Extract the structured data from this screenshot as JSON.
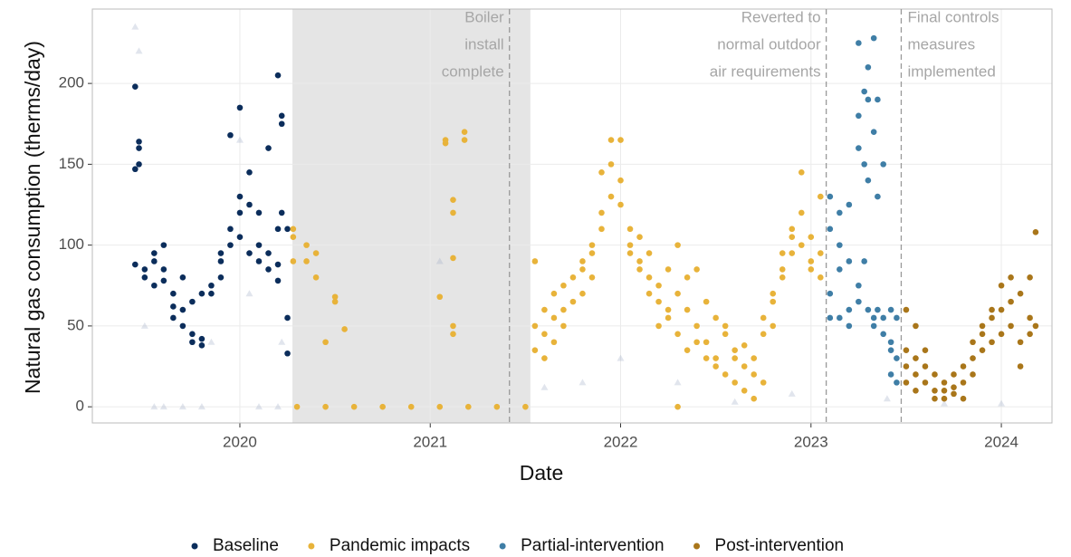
{
  "chart_data": {
    "type": "scatter",
    "xlabel": "Date",
    "ylabel": "Natural gas consumption (therms/day)",
    "xlim": [
      2019.225,
      2024.266
    ],
    "ylim": [
      -10,
      246
    ],
    "xticks": [
      2020,
      2021,
      2022,
      2023,
      2024
    ],
    "yticks": [
      0,
      50,
      100,
      150,
      200
    ],
    "grid": true,
    "legend": "bottom",
    "shaded_region": [
      2020.276,
      2021.526
    ],
    "annotations": [
      {
        "x": 2021.416,
        "align": "right",
        "lines": [
          "Boiler",
          "install",
          "complete"
        ]
      },
      {
        "x": 2023.08,
        "align": "right",
        "lines": [
          "Reverted to",
          "normal outdoor",
          "air requirements"
        ]
      },
      {
        "x": 2023.474,
        "align": "left",
        "lines": [
          "Final controls",
          "measures",
          "implemented"
        ]
      }
    ],
    "series": [
      {
        "color": "#9aa9c4",
        "marker": "triangle",
        "opacity": 0.3,
        "x": [
          2019.45,
          2019.47,
          2019.5,
          2019.55,
          2019.6,
          2019.7,
          2019.8,
          2019.85,
          2020.0,
          2020.05,
          2020.1,
          2020.2,
          2020.22,
          2021.05,
          2021.6,
          2021.8,
          2022.0,
          2022.3,
          2022.6,
          2022.9,
          2023.4,
          2023.7,
          2024.0
        ],
        "values": [
          235,
          220,
          50,
          0,
          0,
          0,
          0,
          40,
          165,
          70,
          0,
          0,
          40,
          90,
          12,
          15,
          30,
          15,
          3,
          8,
          5,
          2,
          2
        ]
      },
      {
        "name": "Baseline",
        "color": "#0b2d5b",
        "x": [
          2019.45,
          2019.45,
          2019.45,
          2019.47,
          2019.47,
          2019.47,
          2019.5,
          2019.5,
          2019.55,
          2019.55,
          2019.55,
          2019.6,
          2019.6,
          2019.6,
          2019.65,
          2019.65,
          2019.65,
          2019.7,
          2019.7,
          2019.7,
          2019.75,
          2019.75,
          2019.75,
          2019.8,
          2019.8,
          2019.8,
          2019.85,
          2019.85,
          2019.9,
          2019.9,
          2019.9,
          2019.95,
          2019.95,
          2019.95,
          2020.0,
          2020.0,
          2020.0,
          2020.0,
          2020.05,
          2020.05,
          2020.05,
          2020.1,
          2020.1,
          2020.1,
          2020.15,
          2020.15,
          2020.15,
          2020.2,
          2020.2,
          2020.2,
          2020.2,
          2020.22,
          2020.22,
          2020.22,
          2020.25,
          2020.25,
          2020.25
        ],
        "values": [
          198,
          147,
          88,
          164,
          160,
          150,
          85,
          80,
          90,
          75,
          95,
          100,
          85,
          78,
          62,
          55,
          70,
          60,
          50,
          80,
          45,
          40,
          65,
          42,
          38,
          70,
          75,
          70,
          90,
          95,
          80,
          168,
          110,
          100,
          185,
          130,
          120,
          105,
          145,
          125,
          95,
          100,
          90,
          120,
          160,
          85,
          95,
          205,
          110,
          88,
          78,
          180,
          175,
          120,
          55,
          33,
          110
        ]
      },
      {
        "name": "Pandemic impacts",
        "color": "#e8b33a",
        "x": [
          2020.28,
          2020.28,
          2020.28,
          2020.3,
          2020.45,
          2020.6,
          2020.75,
          2020.9,
          2021.05,
          2021.2,
          2021.35,
          2021.5,
          2020.35,
          2020.35,
          2020.4,
          2020.4,
          2020.45,
          2020.5,
          2020.5,
          2020.55,
          2021.05,
          2021.08,
          2021.08,
          2021.12,
          2021.12,
          2021.12,
          2021.12,
          2021.12,
          2021.18,
          2021.18,
          2021.55,
          2021.55,
          2021.55,
          2021.6,
          2021.6,
          2021.6,
          2021.65,
          2021.65,
          2021.65,
          2021.7,
          2021.7,
          2021.7,
          2021.75,
          2021.75,
          2021.8,
          2021.8,
          2021.8,
          2021.85,
          2021.85,
          2021.85,
          2021.9,
          2021.9,
          2021.9,
          2021.95,
          2021.95,
          2021.95,
          2022.0,
          2022.0,
          2022.0,
          2022.05,
          2022.05,
          2022.05,
          2022.1,
          2022.1,
          2022.1,
          2022.15,
          2022.15,
          2022.15,
          2022.2,
          2022.2,
          2022.2,
          2022.25,
          2022.25,
          2022.25,
          2022.3,
          2022.3,
          2022.3,
          2022.3,
          2022.35,
          2022.35,
          2022.35,
          2022.4,
          2022.4,
          2022.4,
          2022.45,
          2022.45,
          2022.45,
          2022.5,
          2022.5,
          2022.5,
          2022.55,
          2022.55,
          2022.55,
          2022.6,
          2022.6,
          2022.6,
          2022.65,
          2022.65,
          2022.65,
          2022.7,
          2022.7,
          2022.7,
          2022.75,
          2022.75,
          2022.75,
          2022.8,
          2022.8,
          2022.8,
          2022.85,
          2022.85,
          2022.85,
          2022.9,
          2022.9,
          2022.9,
          2022.95,
          2022.95,
          2022.95,
          2023.0,
          2023.0,
          2023.0,
          2023.05,
          2023.05,
          2023.05
        ],
        "values": [
          105,
          110,
          90,
          0,
          0,
          0,
          0,
          0,
          0,
          0,
          0,
          0,
          100,
          90,
          95,
          80,
          40,
          65,
          68,
          48,
          68,
          165,
          163,
          50,
          45,
          92,
          120,
          128,
          170,
          165,
          90,
          50,
          35,
          45,
          30,
          60,
          55,
          70,
          40,
          60,
          75,
          50,
          80,
          65,
          90,
          85,
          70,
          100,
          95,
          80,
          120,
          145,
          110,
          165,
          150,
          130,
          165,
          140,
          125,
          110,
          100,
          95,
          105,
          90,
          85,
          95,
          80,
          70,
          75,
          65,
          50,
          85,
          60,
          55,
          70,
          100,
          45,
          0,
          80,
          60,
          35,
          85,
          50,
          40,
          65,
          40,
          30,
          55,
          30,
          25,
          50,
          45,
          20,
          30,
          15,
          35,
          25,
          10,
          38,
          30,
          20,
          5,
          45,
          55,
          15,
          65,
          70,
          50,
          85,
          80,
          95,
          105,
          95,
          110,
          145,
          100,
          120,
          105,
          90,
          85,
          130,
          95,
          80
        ]
      },
      {
        "name": "Partial-intervention",
        "color": "#3f7ea6",
        "x": [
          2023.1,
          2023.1,
          2023.1,
          2023.1,
          2023.15,
          2023.15,
          2023.15,
          2023.15,
          2023.2,
          2023.2,
          2023.2,
          2023.2,
          2023.25,
          2023.25,
          2023.25,
          2023.25,
          2023.25,
          2023.28,
          2023.28,
          2023.28,
          2023.3,
          2023.3,
          2023.3,
          2023.3,
          2023.33,
          2023.33,
          2023.33,
          2023.33,
          2023.35,
          2023.35,
          2023.35,
          2023.38,
          2023.38,
          2023.38,
          2023.42,
          2023.42,
          2023.42,
          2023.42,
          2023.45,
          2023.45,
          2023.45
        ],
        "values": [
          110,
          70,
          55,
          130,
          120,
          100,
          85,
          55,
          125,
          90,
          60,
          50,
          225,
          180,
          160,
          75,
          65,
          195,
          150,
          90,
          210,
          190,
          140,
          60,
          228,
          170,
          55,
          50,
          190,
          130,
          60,
          150,
          55,
          45,
          60,
          35,
          40,
          20,
          55,
          30,
          15
        ]
      },
      {
        "name": "Post-intervention",
        "color": "#a9761a",
        "x": [
          2023.5,
          2023.5,
          2023.5,
          2023.5,
          2023.55,
          2023.55,
          2023.55,
          2023.55,
          2023.6,
          2023.6,
          2023.6,
          2023.65,
          2023.65,
          2023.65,
          2023.7,
          2023.7,
          2023.7,
          2023.75,
          2023.75,
          2023.75,
          2023.8,
          2023.8,
          2023.8,
          2023.85,
          2023.85,
          2023.85,
          2023.9,
          2023.9,
          2023.9,
          2023.95,
          2023.95,
          2023.95,
          2024.0,
          2024.0,
          2024.0,
          2024.05,
          2024.05,
          2024.05,
          2024.1,
          2024.1,
          2024.1,
          2024.15,
          2024.15,
          2024.15,
          2024.18,
          2024.18
        ],
        "values": [
          60,
          35,
          25,
          15,
          50,
          20,
          30,
          10,
          25,
          15,
          35,
          20,
          10,
          5,
          10,
          5,
          15,
          8,
          20,
          12,
          25,
          15,
          5,
          30,
          40,
          20,
          50,
          45,
          35,
          60,
          55,
          40,
          75,
          60,
          45,
          80,
          65,
          50,
          70,
          40,
          25,
          55,
          45,
          80,
          108,
          50
        ]
      }
    ]
  }
}
